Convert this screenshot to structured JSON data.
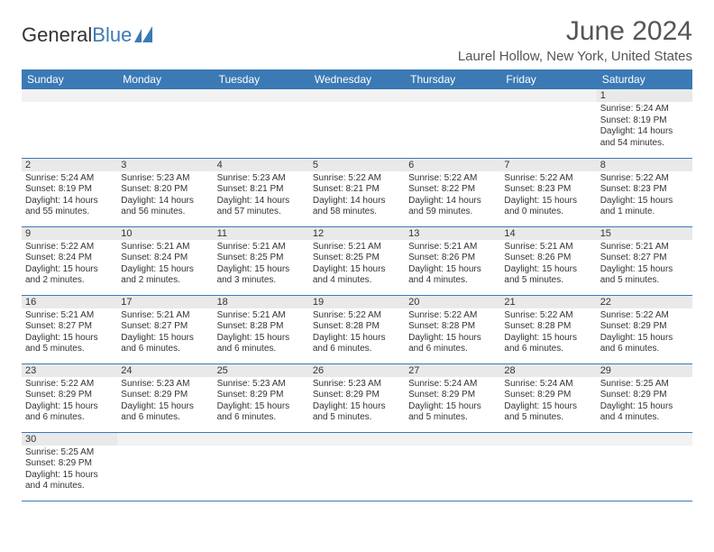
{
  "brand": {
    "part1": "General",
    "part2": "Blue"
  },
  "title": "June 2024",
  "location": "Laurel Hollow, New York, United States",
  "colors": {
    "header_bg": "#3b7ab5",
    "header_text": "#ffffff",
    "daybar_bg": "#e9e9e9",
    "border": "#3b7ab5",
    "text": "#333333",
    "title_text": "#555555"
  },
  "typography": {
    "title_fontsize": 30,
    "location_fontsize": 15,
    "header_fontsize": 12,
    "daynum_fontsize": 11,
    "body_fontsize": 10
  },
  "weekdays": [
    "Sunday",
    "Monday",
    "Tuesday",
    "Wednesday",
    "Thursday",
    "Friday",
    "Saturday"
  ],
  "weeks": [
    [
      {
        "empty": true
      },
      {
        "empty": true
      },
      {
        "empty": true
      },
      {
        "empty": true
      },
      {
        "empty": true
      },
      {
        "empty": true
      },
      {
        "day": "1",
        "sunrise": "Sunrise: 5:24 AM",
        "sunset": "Sunset: 8:19 PM",
        "daylight": "Daylight: 14 hours and 54 minutes."
      }
    ],
    [
      {
        "day": "2",
        "sunrise": "Sunrise: 5:24 AM",
        "sunset": "Sunset: 8:19 PM",
        "daylight": "Daylight: 14 hours and 55 minutes."
      },
      {
        "day": "3",
        "sunrise": "Sunrise: 5:23 AM",
        "sunset": "Sunset: 8:20 PM",
        "daylight": "Daylight: 14 hours and 56 minutes."
      },
      {
        "day": "4",
        "sunrise": "Sunrise: 5:23 AM",
        "sunset": "Sunset: 8:21 PM",
        "daylight": "Daylight: 14 hours and 57 minutes."
      },
      {
        "day": "5",
        "sunrise": "Sunrise: 5:22 AM",
        "sunset": "Sunset: 8:21 PM",
        "daylight": "Daylight: 14 hours and 58 minutes."
      },
      {
        "day": "6",
        "sunrise": "Sunrise: 5:22 AM",
        "sunset": "Sunset: 8:22 PM",
        "daylight": "Daylight: 14 hours and 59 minutes."
      },
      {
        "day": "7",
        "sunrise": "Sunrise: 5:22 AM",
        "sunset": "Sunset: 8:23 PM",
        "daylight": "Daylight: 15 hours and 0 minutes."
      },
      {
        "day": "8",
        "sunrise": "Sunrise: 5:22 AM",
        "sunset": "Sunset: 8:23 PM",
        "daylight": "Daylight: 15 hours and 1 minute."
      }
    ],
    [
      {
        "day": "9",
        "sunrise": "Sunrise: 5:22 AM",
        "sunset": "Sunset: 8:24 PM",
        "daylight": "Daylight: 15 hours and 2 minutes."
      },
      {
        "day": "10",
        "sunrise": "Sunrise: 5:21 AM",
        "sunset": "Sunset: 8:24 PM",
        "daylight": "Daylight: 15 hours and 2 minutes."
      },
      {
        "day": "11",
        "sunrise": "Sunrise: 5:21 AM",
        "sunset": "Sunset: 8:25 PM",
        "daylight": "Daylight: 15 hours and 3 minutes."
      },
      {
        "day": "12",
        "sunrise": "Sunrise: 5:21 AM",
        "sunset": "Sunset: 8:25 PM",
        "daylight": "Daylight: 15 hours and 4 minutes."
      },
      {
        "day": "13",
        "sunrise": "Sunrise: 5:21 AM",
        "sunset": "Sunset: 8:26 PM",
        "daylight": "Daylight: 15 hours and 4 minutes."
      },
      {
        "day": "14",
        "sunrise": "Sunrise: 5:21 AM",
        "sunset": "Sunset: 8:26 PM",
        "daylight": "Daylight: 15 hours and 5 minutes."
      },
      {
        "day": "15",
        "sunrise": "Sunrise: 5:21 AM",
        "sunset": "Sunset: 8:27 PM",
        "daylight": "Daylight: 15 hours and 5 minutes."
      }
    ],
    [
      {
        "day": "16",
        "sunrise": "Sunrise: 5:21 AM",
        "sunset": "Sunset: 8:27 PM",
        "daylight": "Daylight: 15 hours and 5 minutes."
      },
      {
        "day": "17",
        "sunrise": "Sunrise: 5:21 AM",
        "sunset": "Sunset: 8:27 PM",
        "daylight": "Daylight: 15 hours and 6 minutes."
      },
      {
        "day": "18",
        "sunrise": "Sunrise: 5:21 AM",
        "sunset": "Sunset: 8:28 PM",
        "daylight": "Daylight: 15 hours and 6 minutes."
      },
      {
        "day": "19",
        "sunrise": "Sunrise: 5:22 AM",
        "sunset": "Sunset: 8:28 PM",
        "daylight": "Daylight: 15 hours and 6 minutes."
      },
      {
        "day": "20",
        "sunrise": "Sunrise: 5:22 AM",
        "sunset": "Sunset: 8:28 PM",
        "daylight": "Daylight: 15 hours and 6 minutes."
      },
      {
        "day": "21",
        "sunrise": "Sunrise: 5:22 AM",
        "sunset": "Sunset: 8:28 PM",
        "daylight": "Daylight: 15 hours and 6 minutes."
      },
      {
        "day": "22",
        "sunrise": "Sunrise: 5:22 AM",
        "sunset": "Sunset: 8:29 PM",
        "daylight": "Daylight: 15 hours and 6 minutes."
      }
    ],
    [
      {
        "day": "23",
        "sunrise": "Sunrise: 5:22 AM",
        "sunset": "Sunset: 8:29 PM",
        "daylight": "Daylight: 15 hours and 6 minutes."
      },
      {
        "day": "24",
        "sunrise": "Sunrise: 5:23 AM",
        "sunset": "Sunset: 8:29 PM",
        "daylight": "Daylight: 15 hours and 6 minutes."
      },
      {
        "day": "25",
        "sunrise": "Sunrise: 5:23 AM",
        "sunset": "Sunset: 8:29 PM",
        "daylight": "Daylight: 15 hours and 6 minutes."
      },
      {
        "day": "26",
        "sunrise": "Sunrise: 5:23 AM",
        "sunset": "Sunset: 8:29 PM",
        "daylight": "Daylight: 15 hours and 5 minutes."
      },
      {
        "day": "27",
        "sunrise": "Sunrise: 5:24 AM",
        "sunset": "Sunset: 8:29 PM",
        "daylight": "Daylight: 15 hours and 5 minutes."
      },
      {
        "day": "28",
        "sunrise": "Sunrise: 5:24 AM",
        "sunset": "Sunset: 8:29 PM",
        "daylight": "Daylight: 15 hours and 5 minutes."
      },
      {
        "day": "29",
        "sunrise": "Sunrise: 5:25 AM",
        "sunset": "Sunset: 8:29 PM",
        "daylight": "Daylight: 15 hours and 4 minutes."
      }
    ],
    [
      {
        "day": "30",
        "sunrise": "Sunrise: 5:25 AM",
        "sunset": "Sunset: 8:29 PM",
        "daylight": "Daylight: 15 hours and 4 minutes."
      },
      {
        "empty": true
      },
      {
        "empty": true
      },
      {
        "empty": true
      },
      {
        "empty": true
      },
      {
        "empty": true
      },
      {
        "empty": true
      }
    ]
  ]
}
